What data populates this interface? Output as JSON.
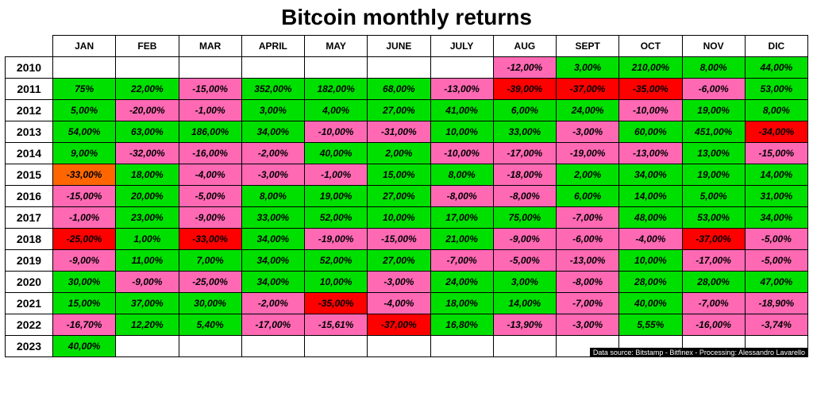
{
  "title": "Bitcoin monthly returns",
  "credit": "Data source: Bitstamp - Bitfinex - Processing: Alessandro Lavarello",
  "colors": {
    "green": "#00e000",
    "pink": "#ff69b4",
    "red": "#ff0000",
    "orange": "#ff6600",
    "white": "#ffffff"
  },
  "months": [
    "JAN",
    "FEB",
    "MAR",
    "APRIL",
    "MAY",
    "JUNE",
    "JULY",
    "AUG",
    "SEPT",
    "OCT",
    "NOV",
    "DIC"
  ],
  "years": [
    "2010",
    "2011",
    "2012",
    "2013",
    "2014",
    "2015",
    "2016",
    "2017",
    "2018",
    "2019",
    "2020",
    "2021",
    "2022",
    "2023"
  ],
  "rows": [
    [
      {
        "v": "",
        "c": "white"
      },
      {
        "v": "",
        "c": "white"
      },
      {
        "v": "",
        "c": "white"
      },
      {
        "v": "",
        "c": "white"
      },
      {
        "v": "",
        "c": "white"
      },
      {
        "v": "",
        "c": "white"
      },
      {
        "v": "",
        "c": "white"
      },
      {
        "v": "-12,00%",
        "c": "pink"
      },
      {
        "v": "3,00%",
        "c": "green"
      },
      {
        "v": "210,00%",
        "c": "green"
      },
      {
        "v": "8,00%",
        "c": "green"
      },
      {
        "v": "44,00%",
        "c": "green"
      }
    ],
    [
      {
        "v": "75%",
        "c": "green"
      },
      {
        "v": "22,00%",
        "c": "green"
      },
      {
        "v": "-15,00%",
        "c": "pink"
      },
      {
        "v": "352,00%",
        "c": "green"
      },
      {
        "v": "182,00%",
        "c": "green"
      },
      {
        "v": "68,00%",
        "c": "green"
      },
      {
        "v": "-13,00%",
        "c": "pink"
      },
      {
        "v": "-39,00%",
        "c": "red"
      },
      {
        "v": "-37,00%",
        "c": "red"
      },
      {
        "v": "-35,00%",
        "c": "red"
      },
      {
        "v": "-6,00%",
        "c": "pink"
      },
      {
        "v": "53,00%",
        "c": "green"
      }
    ],
    [
      {
        "v": "5,00%",
        "c": "green"
      },
      {
        "v": "-20,00%",
        "c": "pink"
      },
      {
        "v": "-1,00%",
        "c": "pink"
      },
      {
        "v": "3,00%",
        "c": "green"
      },
      {
        "v": "4,00%",
        "c": "green"
      },
      {
        "v": "27,00%",
        "c": "green"
      },
      {
        "v": "41,00%",
        "c": "green"
      },
      {
        "v": "6,00%",
        "c": "green"
      },
      {
        "v": "24,00%",
        "c": "green"
      },
      {
        "v": "-10,00%",
        "c": "pink"
      },
      {
        "v": "19,00%",
        "c": "green"
      },
      {
        "v": "8,00%",
        "c": "green"
      }
    ],
    [
      {
        "v": "54,00%",
        "c": "green"
      },
      {
        "v": "63,00%",
        "c": "green"
      },
      {
        "v": "186,00%",
        "c": "green"
      },
      {
        "v": "34,00%",
        "c": "green"
      },
      {
        "v": "-10,00%",
        "c": "pink"
      },
      {
        "v": "-31,00%",
        "c": "pink"
      },
      {
        "v": "10,00%",
        "c": "green"
      },
      {
        "v": "33,00%",
        "c": "green"
      },
      {
        "v": "-3,00%",
        "c": "pink"
      },
      {
        "v": "60,00%",
        "c": "green"
      },
      {
        "v": "451,00%",
        "c": "green"
      },
      {
        "v": "-34,00%",
        "c": "red"
      }
    ],
    [
      {
        "v": "9,00%",
        "c": "green"
      },
      {
        "v": "-32,00%",
        "c": "pink"
      },
      {
        "v": "-16,00%",
        "c": "pink"
      },
      {
        "v": "-2,00%",
        "c": "pink"
      },
      {
        "v": "40,00%",
        "c": "green"
      },
      {
        "v": "2,00%",
        "c": "green"
      },
      {
        "v": "-10,00%",
        "c": "pink"
      },
      {
        "v": "-17,00%",
        "c": "pink"
      },
      {
        "v": "-19,00%",
        "c": "pink"
      },
      {
        "v": "-13,00%",
        "c": "pink"
      },
      {
        "v": "13,00%",
        "c": "green"
      },
      {
        "v": "-15,00%",
        "c": "pink"
      }
    ],
    [
      {
        "v": "-33,00%",
        "c": "orange"
      },
      {
        "v": "18,00%",
        "c": "green"
      },
      {
        "v": "-4,00%",
        "c": "pink"
      },
      {
        "v": "-3,00%",
        "c": "pink"
      },
      {
        "v": "-1,00%",
        "c": "pink"
      },
      {
        "v": "15,00%",
        "c": "green"
      },
      {
        "v": "8,00%",
        "c": "green"
      },
      {
        "v": "-18,00%",
        "c": "pink"
      },
      {
        "v": "2,00%",
        "c": "green"
      },
      {
        "v": "34,00%",
        "c": "green"
      },
      {
        "v": "19,00%",
        "c": "green"
      },
      {
        "v": "14,00%",
        "c": "green"
      }
    ],
    [
      {
        "v": "-15,00%",
        "c": "pink"
      },
      {
        "v": "20,00%",
        "c": "green"
      },
      {
        "v": "-5,00%",
        "c": "pink"
      },
      {
        "v": "8,00%",
        "c": "green"
      },
      {
        "v": "19,00%",
        "c": "green"
      },
      {
        "v": "27,00%",
        "c": "green"
      },
      {
        "v": "-8,00%",
        "c": "pink"
      },
      {
        "v": "-8,00%",
        "c": "pink"
      },
      {
        "v": "6,00%",
        "c": "green"
      },
      {
        "v": "14,00%",
        "c": "green"
      },
      {
        "v": "5,00%",
        "c": "green"
      },
      {
        "v": "31,00%",
        "c": "green"
      }
    ],
    [
      {
        "v": "-1,00%",
        "c": "pink"
      },
      {
        "v": "23,00%",
        "c": "green"
      },
      {
        "v": "-9,00%",
        "c": "pink"
      },
      {
        "v": "33,00%",
        "c": "green"
      },
      {
        "v": "52,00%",
        "c": "green"
      },
      {
        "v": "10,00%",
        "c": "green"
      },
      {
        "v": "17,00%",
        "c": "green"
      },
      {
        "v": "75,00%",
        "c": "green"
      },
      {
        "v": "-7,00%",
        "c": "pink"
      },
      {
        "v": "48,00%",
        "c": "green"
      },
      {
        "v": "53,00%",
        "c": "green"
      },
      {
        "v": "34,00%",
        "c": "green"
      }
    ],
    [
      {
        "v": "-25,00%",
        "c": "red"
      },
      {
        "v": "1,00%",
        "c": "green"
      },
      {
        "v": "-33,00%",
        "c": "red"
      },
      {
        "v": "34,00%",
        "c": "green"
      },
      {
        "v": "-19,00%",
        "c": "pink"
      },
      {
        "v": "-15,00%",
        "c": "pink"
      },
      {
        "v": "21,00%",
        "c": "green"
      },
      {
        "v": "-9,00%",
        "c": "pink"
      },
      {
        "v": "-6,00%",
        "c": "pink"
      },
      {
        "v": "-4,00%",
        "c": "pink"
      },
      {
        "v": "-37,00%",
        "c": "red"
      },
      {
        "v": "-5,00%",
        "c": "pink"
      }
    ],
    [
      {
        "v": "-9,00%",
        "c": "pink"
      },
      {
        "v": "11,00%",
        "c": "green"
      },
      {
        "v": "7,00%",
        "c": "green"
      },
      {
        "v": "34,00%",
        "c": "green"
      },
      {
        "v": "52,00%",
        "c": "green"
      },
      {
        "v": "27,00%",
        "c": "green"
      },
      {
        "v": "-7,00%",
        "c": "pink"
      },
      {
        "v": "-5,00%",
        "c": "pink"
      },
      {
        "v": "-13,00%",
        "c": "pink"
      },
      {
        "v": "10,00%",
        "c": "green"
      },
      {
        "v": "-17,00%",
        "c": "pink"
      },
      {
        "v": "-5,00%",
        "c": "pink"
      }
    ],
    [
      {
        "v": "30,00%",
        "c": "green"
      },
      {
        "v": "-9,00%",
        "c": "pink"
      },
      {
        "v": "-25,00%",
        "c": "pink"
      },
      {
        "v": "34,00%",
        "c": "green"
      },
      {
        "v": "10,00%",
        "c": "green"
      },
      {
        "v": "-3,00%",
        "c": "pink"
      },
      {
        "v": "24,00%",
        "c": "green"
      },
      {
        "v": "3,00%",
        "c": "green"
      },
      {
        "v": "-8,00%",
        "c": "pink"
      },
      {
        "v": "28,00%",
        "c": "green"
      },
      {
        "v": "28,00%",
        "c": "green"
      },
      {
        "v": "47,00%",
        "c": "green"
      }
    ],
    [
      {
        "v": "15,00%",
        "c": "green"
      },
      {
        "v": "37,00%",
        "c": "green"
      },
      {
        "v": "30,00%",
        "c": "green"
      },
      {
        "v": "-2,00%",
        "c": "pink"
      },
      {
        "v": "-35,00%",
        "c": "red"
      },
      {
        "v": "-4,00%",
        "c": "pink"
      },
      {
        "v": "18,00%",
        "c": "green"
      },
      {
        "v": "14,00%",
        "c": "green"
      },
      {
        "v": "-7,00%",
        "c": "pink"
      },
      {
        "v": "40,00%",
        "c": "green"
      },
      {
        "v": "-7,00%",
        "c": "pink"
      },
      {
        "v": "-18,90%",
        "c": "pink"
      }
    ],
    [
      {
        "v": "-16,70%",
        "c": "pink"
      },
      {
        "v": "12,20%",
        "c": "green"
      },
      {
        "v": "5,40%",
        "c": "green"
      },
      {
        "v": "-17,00%",
        "c": "pink"
      },
      {
        "v": "-15,61%",
        "c": "pink"
      },
      {
        "v": "-37,00%",
        "c": "red"
      },
      {
        "v": "16,80%",
        "c": "green"
      },
      {
        "v": "-13,90%",
        "c": "pink"
      },
      {
        "v": "-3,00%",
        "c": "pink"
      },
      {
        "v": "5,55%",
        "c": "green"
      },
      {
        "v": "-16,00%",
        "c": "pink"
      },
      {
        "v": "-3,74%",
        "c": "pink"
      }
    ],
    [
      {
        "v": "40,00%",
        "c": "green"
      },
      {
        "v": "",
        "c": "white"
      },
      {
        "v": "",
        "c": "white"
      },
      {
        "v": "",
        "c": "white"
      },
      {
        "v": "",
        "c": "white"
      },
      {
        "v": "",
        "c": "white"
      },
      {
        "v": "",
        "c": "white"
      },
      {
        "v": "",
        "c": "white"
      },
      {
        "v": "",
        "c": "white"
      },
      {
        "v": "",
        "c": "white"
      },
      {
        "v": "",
        "c": "white"
      },
      {
        "v": "",
        "c": "white"
      }
    ]
  ]
}
